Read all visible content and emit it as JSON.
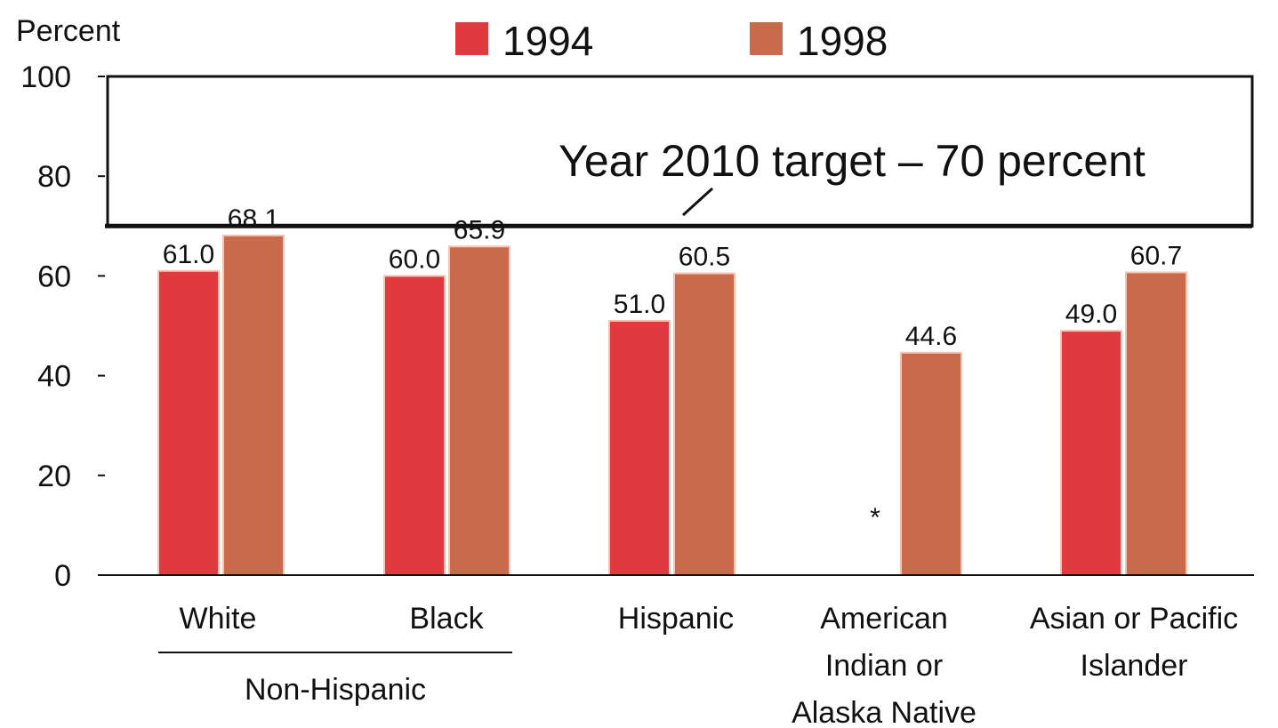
{
  "chart_data": {
    "type": "bar",
    "ylabel": "Percent",
    "ylim": [
      0,
      100
    ],
    "yticks": [
      "0",
      "20",
      "40",
      "60",
      "80",
      "100"
    ],
    "grid": false,
    "legend_position": "top",
    "categories": [
      "White",
      "Black",
      "Hispanic",
      "American Indian or Alaska Native",
      "Asian or Pacific Islander"
    ],
    "category_lines": [
      [
        "White"
      ],
      [
        "Black"
      ],
      [
        "Hispanic"
      ],
      [
        "American",
        "Indian or",
        "Alaska Native"
      ],
      [
        "Asian or Pacific",
        "Islander"
      ]
    ],
    "group_label": "Non-Hispanic",
    "series": [
      {
        "name": "1994",
        "color": "#e0393e",
        "values": [
          61.0,
          60.0,
          51.0,
          null,
          49.0
        ],
        "labels": [
          "61.0",
          "60.0",
          "51.0",
          "*",
          "49.0"
        ]
      },
      {
        "name": "1998",
        "color": "#c96a4b",
        "values": [
          68.1,
          65.9,
          60.5,
          44.6,
          60.7
        ],
        "labels": [
          "68.1",
          "65.9",
          "60.5",
          "44.6",
          "60.7"
        ]
      }
    ],
    "target": {
      "value": 70,
      "label": "Year 2010 target – 70 percent"
    }
  }
}
